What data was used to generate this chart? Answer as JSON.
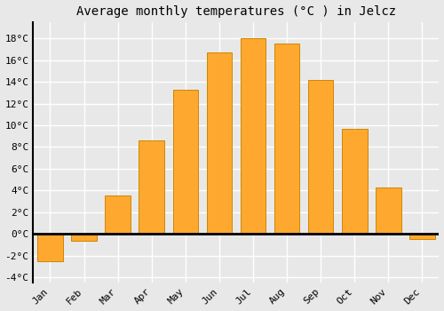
{
  "months": [
    "Jan",
    "Feb",
    "Mar",
    "Apr",
    "May",
    "Jun",
    "Jul",
    "Aug",
    "Sep",
    "Oct",
    "Nov",
    "Dec"
  ],
  "values": [
    -2.5,
    -0.6,
    3.5,
    8.6,
    13.3,
    16.7,
    18.0,
    17.5,
    14.2,
    9.7,
    4.3,
    -0.5
  ],
  "bar_color": "#FFA830",
  "bar_edge_color": "#CC8800",
  "title": "Average monthly temperatures (°C ) in Jelcz",
  "ylim": [
    -4.5,
    19.5
  ],
  "yticks": [
    -4,
    -2,
    0,
    2,
    4,
    6,
    8,
    10,
    12,
    14,
    16,
    18
  ],
  "background_color": "#e8e8e8",
  "grid_color": "#ffffff",
  "zero_line_color": "#000000",
  "left_spine_color": "#000000",
  "title_fontsize": 10,
  "tick_fontsize": 8,
  "font_family": "monospace"
}
